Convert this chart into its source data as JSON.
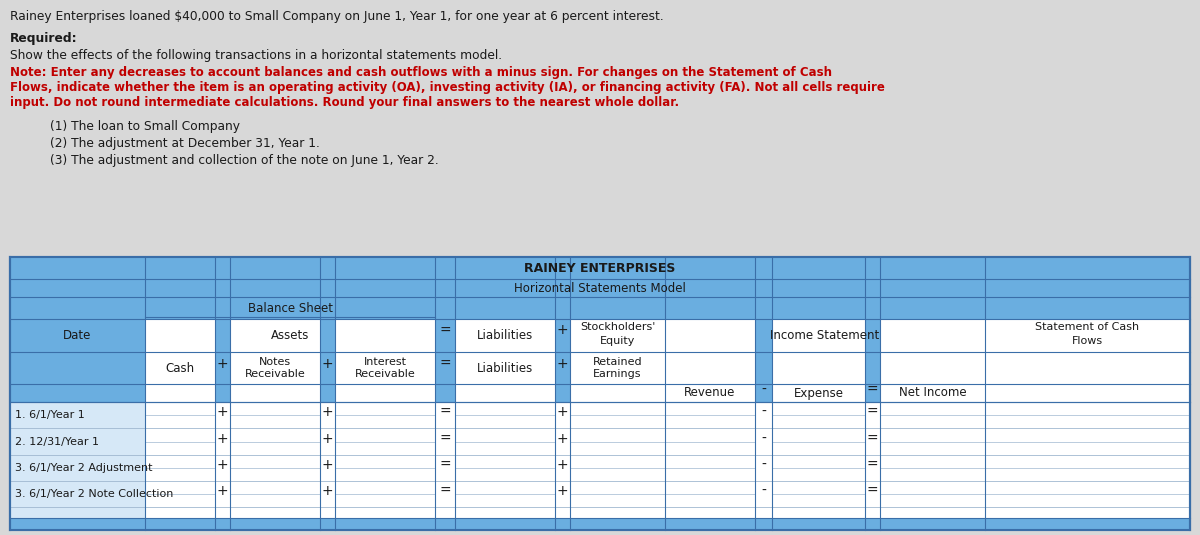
{
  "title_line": "Rainey Enterprises loaned $40,000 to Small Company on June 1, Year 1, for one year at 6 percent interest.",
  "required_label": "Required:",
  "required_text": "Show the effects of the following transactions in a horizontal statements model.",
  "note_line1": "Note: Enter any decreases to account balances and cash outflows with a minus sign. For changes on the Statement of Cash",
  "note_line2": "Flows, indicate whether the item is an operating activity (OA), investing activity (IA), or financing activity (FA). Not all cells require",
  "note_line3": "input. Do not round intermediate calculations. Round your final answers to the nearest whole dollar.",
  "item1": "(1) The loan to Small Company",
  "item2": "(2) The adjustment at December 31, Year 1.",
  "item3": "(3) The adjustment and collection of the note on June 1, Year 2.",
  "table_title": "RAINEY ENTERPRISES",
  "table_subtitle": "Horizontal Statements Model",
  "balance_sheet_label": "Balance Sheet",
  "row_labels": [
    "1. 6/1/Year 1",
    "2. 12/31/Year 1",
    "3. 6/1/Year 2 Adjustment",
    "3. 6/1/Year 2 Note Collection"
  ],
  "header_bg": "#6aaee0",
  "white_bg": "#ffffff",
  "light_blue_bg": "#d6e8f7",
  "table_border_dark": "#3a6ea8",
  "table_border_light": "#a0b8d0",
  "text_dark": "#1a1a1a",
  "text_red": "#c00000",
  "cell_input_bg": "#f0f5fb",
  "bg_color": "#d8d8d8"
}
